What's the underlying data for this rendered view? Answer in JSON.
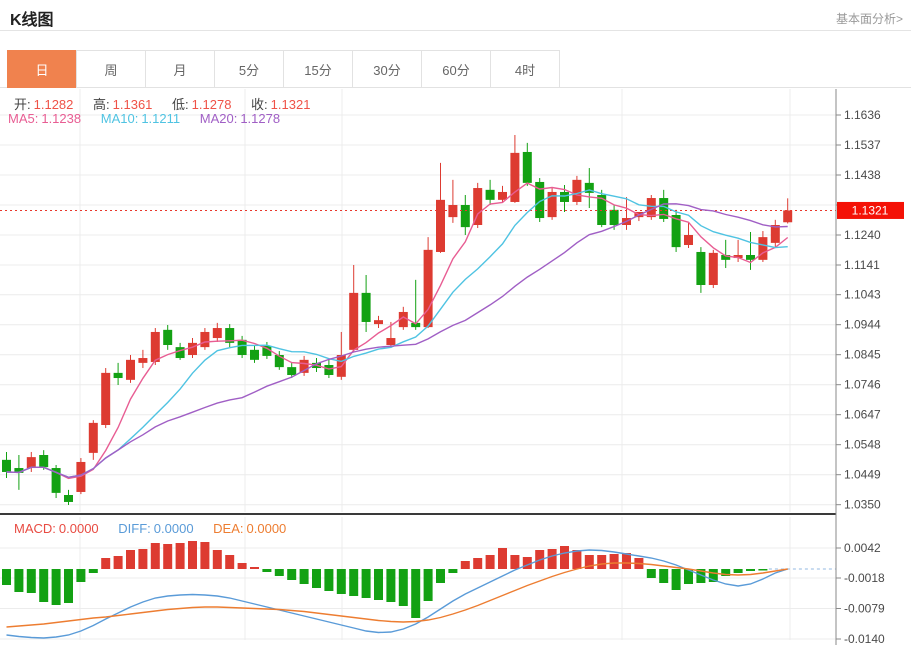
{
  "header": {
    "title": "K线图",
    "link": "基本面分析>"
  },
  "tabs": {
    "items": [
      {
        "label": "日",
        "active": true
      },
      {
        "label": "周",
        "active": false
      },
      {
        "label": "月",
        "active": false
      },
      {
        "label": "5分",
        "active": false
      },
      {
        "label": "15分",
        "active": false
      },
      {
        "label": "30分",
        "active": false
      },
      {
        "label": "60分",
        "active": false
      },
      {
        "label": "4时",
        "active": false
      }
    ]
  },
  "legend": {
    "ohlc": [
      {
        "label": "开:",
        "value": "1.1282"
      },
      {
        "label": "高:",
        "value": "1.1361"
      },
      {
        "label": "低:",
        "value": "1.1278"
      },
      {
        "label": "收:",
        "value": "1.1321"
      }
    ],
    "ma": [
      {
        "label": "MA5:",
        "value": "1.1238"
      },
      {
        "label": "MA10:",
        "value": "1.1211"
      },
      {
        "label": "MA20:",
        "value": "1.1278"
      }
    ],
    "macd": [
      {
        "label": "MACD:",
        "value": "0.0000"
      },
      {
        "label": "DIFF:",
        "value": "0.0000"
      },
      {
        "label": "DEA:",
        "value": "0.0000"
      }
    ]
  },
  "price_badge": "1.1321",
  "colors": {
    "up": "#dd3b31",
    "down": "#13a113",
    "ma5": "#e85d93",
    "ma10": "#4fc3e2",
    "ma20": "#a05fc5",
    "diff": "#5a9bd8",
    "dea": "#ed7d31",
    "badge": "#f41106",
    "price_line": "#e8382c",
    "tab_active": "#f0824e",
    "grid": "#ececec",
    "axis": "#8a8a8a",
    "axis_text": "#4a4a4a",
    "separator": "#3a3a3a",
    "zero_dash": "#a9c6e8"
  },
  "chart_data": [
    {
      "type": "candlestick",
      "title": "K线图 (日)",
      "legend_position": "top-left",
      "grid": true,
      "current_price": 1.1321,
      "ylim": [
        1.035,
        1.1636
      ],
      "y_ticks": [
        {
          "v": 1.1636,
          "label": "1.1636"
        },
        {
          "v": 1.1537,
          "label": "1.1537"
        },
        {
          "v": 1.1438,
          "label": "1.1438"
        },
        {
          "v": 1.1339,
          "label": ""
        },
        {
          "v": 1.124,
          "label": "1.1240"
        },
        {
          "v": 1.1141,
          "label": "1.1141"
        },
        {
          "v": 1.1043,
          "label": "1.1043"
        },
        {
          "v": 1.0944,
          "label": "1.0944"
        },
        {
          "v": 1.0845,
          "label": "1.0845"
        },
        {
          "v": 1.0746,
          "label": "1.0746"
        },
        {
          "v": 1.0647,
          "label": "1.0647"
        },
        {
          "v": 1.0548,
          "label": "1.0548"
        },
        {
          "v": 1.0449,
          "label": "1.0449"
        },
        {
          "v": 1.035,
          "label": "1.0350"
        }
      ],
      "ma_periods": [
        5,
        10,
        20
      ],
      "candles_ohlc": [
        [
          1.0498,
          1.0524,
          1.0438,
          1.0458
        ],
        [
          1.0471,
          1.0514,
          1.0399,
          1.0455
        ],
        [
          1.0471,
          1.0524,
          1.0458,
          1.0507
        ],
        [
          1.0514,
          1.053,
          1.0465,
          1.0474
        ],
        [
          1.0471,
          1.0481,
          1.0372,
          1.0389
        ],
        [
          1.0382,
          1.0399,
          1.0349,
          1.0359
        ],
        [
          1.0392,
          1.0504,
          1.0385,
          1.0491
        ],
        [
          1.0521,
          1.0629,
          1.0498,
          1.062
        ],
        [
          1.0613,
          1.0801,
          1.0603,
          1.0785
        ],
        [
          1.0785,
          1.0818,
          1.0745,
          1.0768
        ],
        [
          1.0762,
          1.0844,
          1.0752,
          1.0828
        ],
        [
          1.0818,
          1.0861,
          1.0801,
          1.0834
        ],
        [
          1.0821,
          1.0933,
          1.0811,
          1.092
        ],
        [
          1.0927,
          1.0943,
          1.0861,
          1.0877
        ],
        [
          1.087,
          1.0884,
          1.0828,
          1.0834
        ],
        [
          1.0844,
          1.09,
          1.0834,
          1.0884
        ],
        [
          1.087,
          1.0933,
          1.0861,
          1.092
        ],
        [
          1.09,
          1.095,
          1.0887,
          1.0933
        ],
        [
          1.0933,
          1.0946,
          1.087,
          1.0884
        ],
        [
          1.0894,
          1.0907,
          1.0834,
          1.0844
        ],
        [
          1.0861,
          1.0874,
          1.0818,
          1.0828
        ],
        [
          1.0874,
          1.0887,
          1.0831,
          1.0841
        ],
        [
          1.0844,
          1.0857,
          1.0795,
          1.0804
        ],
        [
          1.0804,
          1.0821,
          1.0768,
          1.0778
        ],
        [
          1.0785,
          1.0841,
          1.0775,
          1.0828
        ],
        [
          1.0818,
          1.0834,
          1.0788,
          1.0801
        ],
        [
          1.0811,
          1.0828,
          1.0768,
          1.0778
        ],
        [
          1.0772,
          1.092,
          1.0762,
          1.0844
        ],
        [
          1.0861,
          1.1141,
          1.0854,
          1.1049
        ],
        [
          1.1049,
          1.1108,
          1.092,
          1.0953
        ],
        [
          1.0946,
          1.0973,
          1.0933,
          1.0959
        ],
        [
          1.0877,
          1.0953,
          1.0867,
          1.09
        ],
        [
          1.0936,
          1.1003,
          1.0927,
          1.0986
        ],
        [
          1.095,
          1.1092,
          1.0927,
          1.0936
        ],
        [
          1.0936,
          1.1233,
          1.0933,
          1.1191
        ],
        [
          1.1184,
          1.1478,
          1.1181,
          1.1356
        ],
        [
          1.1299,
          1.1422,
          1.128,
          1.1339
        ],
        [
          1.1339,
          1.1372,
          1.124,
          1.1266
        ],
        [
          1.1273,
          1.1412,
          1.1263,
          1.1395
        ],
        [
          1.1389,
          1.1422,
          1.1339,
          1.1356
        ],
        [
          1.1356,
          1.1402,
          1.1346,
          1.1382
        ],
        [
          1.1349,
          1.157,
          1.1346,
          1.1511
        ],
        [
          1.1514,
          1.1544,
          1.1402,
          1.1412
        ],
        [
          1.1415,
          1.1428,
          1.1283,
          1.1296
        ],
        [
          1.1299,
          1.1395,
          1.129,
          1.1382
        ],
        [
          1.1382,
          1.1405,
          1.1316,
          1.1349
        ],
        [
          1.1349,
          1.1435,
          1.1339,
          1.1422
        ],
        [
          1.1412,
          1.1461,
          1.1329,
          1.1379
        ],
        [
          1.1372,
          1.1389,
          1.1266,
          1.1273
        ],
        [
          1.1323,
          1.1339,
          1.1257,
          1.1273
        ],
        [
          1.1273,
          1.1365,
          1.1257,
          1.1296
        ],
        [
          1.1299,
          1.1316,
          1.1286,
          1.1316
        ],
        [
          1.1299,
          1.1372,
          1.129,
          1.1362
        ],
        [
          1.1362,
          1.1389,
          1.1283,
          1.1293
        ],
        [
          1.1306,
          1.1323,
          1.1184,
          1.12
        ],
        [
          1.1207,
          1.128,
          1.1197,
          1.124
        ],
        [
          1.1184,
          1.12,
          1.1049,
          1.1075
        ],
        [
          1.1075,
          1.1191,
          1.1065,
          1.1181
        ],
        [
          1.1174,
          1.1224,
          1.1131,
          1.1158
        ],
        [
          1.1164,
          1.1224,
          1.1151,
          1.1174
        ],
        [
          1.1174,
          1.125,
          1.1125,
          1.1158
        ],
        [
          1.1158,
          1.1253,
          1.1151,
          1.1233
        ],
        [
          1.1214,
          1.129,
          1.12,
          1.1273
        ],
        [
          1.1282,
          1.1361,
          1.1278,
          1.1321
        ]
      ]
    },
    {
      "type": "bar",
      "title": "MACD",
      "ylim": [
        -0.015,
        0.006
      ],
      "y_ticks": [
        {
          "v": 0.0042,
          "label": "0.0042"
        },
        {
          "v": -0.0018,
          "label": "-0.0018"
        },
        {
          "v": -0.0079,
          "label": "-0.0079"
        },
        {
          "v": -0.014,
          "label": "-0.0140"
        }
      ],
      "histogram": [
        -0.0032,
        -0.0046,
        -0.0048,
        -0.0066,
        -0.0072,
        -0.0068,
        -0.0026,
        -0.0008,
        0.0022,
        0.0026,
        0.0038,
        0.004,
        0.0052,
        0.005,
        0.0052,
        0.0056,
        0.0054,
        0.0038,
        0.0028,
        0.0012,
        0.0004,
        -0.0006,
        -0.0014,
        -0.0022,
        -0.003,
        -0.0038,
        -0.0044,
        -0.005,
        -0.0054,
        -0.0058,
        -0.0062,
        -0.0066,
        -0.0074,
        -0.0098,
        -0.0064,
        -0.0028,
        -0.0008,
        0.0016,
        0.0022,
        0.0028,
        0.0042,
        0.0028,
        0.0024,
        0.0038,
        0.004,
        0.0046,
        0.0038,
        0.0028,
        0.0028,
        0.003,
        0.0032,
        0.0022,
        -0.0018,
        -0.0028,
        -0.0042,
        -0.003,
        -0.0028,
        -0.0026,
        -0.0014,
        -0.0008,
        -0.0004,
        -0.0002,
        0,
        0
      ],
      "diff": [
        -0.0132,
        -0.0135,
        -0.0137,
        -0.0138,
        -0.0136,
        -0.0132,
        -0.0124,
        -0.0113,
        -0.01,
        -0.0088,
        -0.0076,
        -0.0066,
        -0.0058,
        -0.0054,
        -0.0052,
        -0.0051,
        -0.0052,
        -0.0054,
        -0.0058,
        -0.0064,
        -0.007,
        -0.0076,
        -0.0082,
        -0.0088,
        -0.0094,
        -0.01,
        -0.0106,
        -0.0112,
        -0.0118,
        -0.0124,
        -0.0127,
        -0.0126,
        -0.012,
        -0.011,
        -0.0096,
        -0.008,
        -0.0064,
        -0.005,
        -0.0038,
        -0.0026,
        -0.0014,
        -0.0002,
        0.0008,
        0.0018,
        0.0026,
        0.0032,
        0.0036,
        0.0038,
        0.0037,
        0.0034,
        0.003,
        0.0026,
        0.0022,
        0.0016,
        0.0008,
        -0.0002,
        -0.0012,
        -0.0022,
        -0.003,
        -0.0034,
        -0.003,
        -0.002,
        -0.0008,
        0.0
      ],
      "dea": [
        -0.0116,
        -0.0114,
        -0.0112,
        -0.011,
        -0.0107,
        -0.0104,
        -0.0101,
        -0.0098,
        -0.0096,
        -0.0093,
        -0.009,
        -0.0087,
        -0.0084,
        -0.0081,
        -0.0079,
        -0.0077,
        -0.0076,
        -0.0076,
        -0.0077,
        -0.0078,
        -0.0079,
        -0.008,
        -0.0081,
        -0.0083,
        -0.0085,
        -0.0088,
        -0.0091,
        -0.0094,
        -0.0097,
        -0.01,
        -0.0103,
        -0.0105,
        -0.0106,
        -0.0105,
        -0.0102,
        -0.0097,
        -0.009,
        -0.0082,
        -0.0073,
        -0.0063,
        -0.0053,
        -0.0043,
        -0.0033,
        -0.0024,
        -0.0015,
        -0.0007,
        0.0,
        0.0006,
        0.001,
        0.0012,
        0.0012,
        0.0011,
        0.0009,
        0.0006,
        0.0003,
        0.0,
        -0.0004,
        -0.0008,
        -0.0011,
        -0.0012,
        -0.0011,
        -0.0008,
        -0.0004,
        0.0
      ]
    }
  ]
}
